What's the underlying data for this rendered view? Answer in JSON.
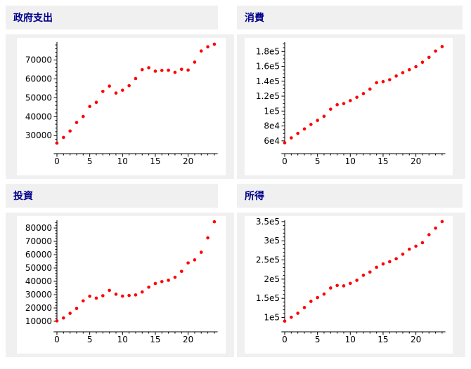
{
  "page": {
    "background": "#ffffff",
    "panel_background": "#f0f0f0",
    "title_color": "#00008b"
  },
  "chart_data": [
    {
      "type": "scatter",
      "title": "政府支出",
      "point_color": "#fe0000",
      "x": [
        0,
        1,
        2,
        3,
        4,
        5,
        6,
        7,
        8,
        9,
        10,
        11,
        12,
        13,
        14,
        15,
        16,
        17,
        18,
        19,
        20,
        21,
        22,
        23,
        24
      ],
      "values": [
        26000,
        29000,
        32400,
        36900,
        40100,
        45400,
        47600,
        53400,
        56200,
        52500,
        54000,
        56400,
        60200,
        64900,
        65900,
        64100,
        64500,
        64600,
        63500,
        65100,
        64700,
        68900,
        74800,
        77000,
        78400
      ],
      "xlim": [
        -0.5,
        24.5
      ],
      "ylim": [
        26000,
        79500
      ],
      "xticks": {
        "major": [
          0,
          5,
          10,
          15,
          20
        ],
        "labels": [
          "0",
          "5",
          "10",
          "15",
          "20"
        ],
        "minor_step": 1
      },
      "yticks": {
        "major": [
          30000,
          40000,
          50000,
          60000,
          70000
        ],
        "labels": [
          "30000",
          "40000",
          "50000",
          "60000",
          "70000"
        ],
        "minor_step": 2000
      },
      "grid": false,
      "legend": "none"
    },
    {
      "type": "scatter",
      "title": "消費",
      "point_color": "#fe0000",
      "x": [
        0,
        1,
        2,
        3,
        4,
        5,
        6,
        7,
        8,
        9,
        10,
        11,
        12,
        13,
        14,
        15,
        16,
        17,
        18,
        19,
        20,
        21,
        22,
        23,
        24
      ],
      "values": [
        57500,
        64000,
        70000,
        76000,
        82000,
        87500,
        93000,
        102500,
        108500,
        110000,
        114000,
        118500,
        123500,
        129500,
        138000,
        139500,
        142000,
        147000,
        151500,
        155500,
        159500,
        165500,
        172000,
        180500,
        186500
      ],
      "xlim": [
        -0.5,
        24.5
      ],
      "ylim": [
        57000,
        192500
      ],
      "xticks": {
        "major": [
          0,
          5,
          10,
          15,
          20
        ],
        "labels": [
          "0",
          "5",
          "10",
          "15",
          "20"
        ],
        "minor_step": 1
      },
      "yticks": {
        "major": [
          60000,
          80000,
          100000,
          120000,
          140000,
          160000,
          180000
        ],
        "labels": [
          "6e4",
          "8e4",
          "1e5",
          "1.2e5",
          "1.4e5",
          "1.6e5",
          "1.8e5"
        ],
        "minor_step": 5000
      },
      "grid": false,
      "legend": "none"
    },
    {
      "type": "scatter",
      "title": "投資",
      "point_color": "#fe0000",
      "x": [
        0,
        1,
        2,
        3,
        4,
        5,
        6,
        7,
        8,
        9,
        10,
        11,
        12,
        13,
        14,
        15,
        16,
        17,
        18,
        19,
        20,
        21,
        22,
        23,
        24
      ],
      "values": [
        10300,
        12500,
        16000,
        19600,
        25300,
        28800,
        27400,
        29200,
        33200,
        30300,
        28900,
        29400,
        29800,
        32000,
        35600,
        38400,
        39800,
        40800,
        43000,
        47500,
        53800,
        56100,
        61800,
        72600,
        84700
      ],
      "xlim": [
        -0.5,
        24.5
      ],
      "ylim": [
        10000,
        85800
      ],
      "xticks": {
        "major": [
          0,
          5,
          10,
          15,
          20
        ],
        "labels": [
          "0",
          "5",
          "10",
          "15",
          "20"
        ],
        "minor_step": 1
      },
      "yticks": {
        "major": [
          10000,
          20000,
          30000,
          40000,
          50000,
          60000,
          70000,
          80000
        ],
        "labels": [
          "10000",
          "20000",
          "30000",
          "40000",
          "50000",
          "60000",
          "70000",
          "80000"
        ],
        "minor_step": 2000
      },
      "grid": false,
      "legend": "none"
    },
    {
      "type": "scatter",
      "title": "所得",
      "point_color": "#fe0000",
      "x": [
        0,
        1,
        2,
        3,
        4,
        5,
        6,
        7,
        8,
        9,
        10,
        11,
        12,
        13,
        14,
        15,
        16,
        17,
        18,
        19,
        20,
        21,
        22,
        23,
        24
      ],
      "values": [
        90500,
        100500,
        111000,
        126000,
        142000,
        152000,
        161000,
        177000,
        183500,
        182500,
        189000,
        197000,
        210000,
        218500,
        231000,
        239500,
        245500,
        253000,
        265000,
        278000,
        286000,
        295000,
        316000,
        333000,
        350000
      ],
      "xlim": [
        -0.5,
        24.5
      ],
      "ylim": [
        90000,
        353500
      ],
      "xticks": {
        "major": [
          0,
          5,
          10,
          15,
          20
        ],
        "labels": [
          "0",
          "5",
          "10",
          "15",
          "20"
        ],
        "minor_step": 1
      },
      "yticks": {
        "major": [
          100000,
          150000,
          200000,
          250000,
          300000,
          350000
        ],
        "labels": [
          "1e5",
          "1.5e5",
          "2e5",
          "2.5e5",
          "3e5",
          "3.5e5"
        ],
        "minor_step": 10000
      },
      "grid": false,
      "legend": "none"
    }
  ]
}
